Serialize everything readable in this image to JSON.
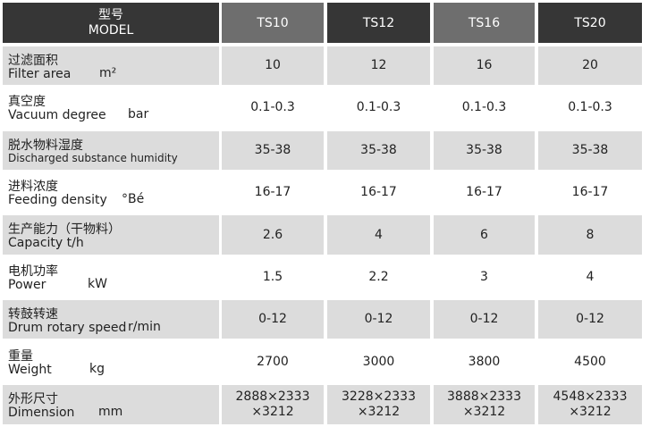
{
  "header": {
    "model_cn": "型号",
    "model_en": "MODEL",
    "columns": [
      "TS10",
      "TS12",
      "TS16",
      "TS20"
    ]
  },
  "rows": [
    {
      "cn": "过滤面积",
      "en": "Filter area",
      "unit": "m²",
      "values": [
        "10",
        "12",
        "16",
        "20"
      ]
    },
    {
      "cn": "真空度",
      "en": "Vacuum degree",
      "unit": "bar",
      "values": [
        "0.1-0.3",
        "0.1-0.3",
        "0.1-0.3",
        "0.1-0.3"
      ]
    },
    {
      "cn": "脱水物料湿度",
      "en": "Discharged substance humidity",
      "values": [
        "35-38",
        "35-38",
        "35-38",
        "35-38"
      ]
    },
    {
      "cn": "进料浓度",
      "en": "Feeding density",
      "unit": "°Bé",
      "values": [
        "16-17",
        "16-17",
        "16-17",
        "16-17"
      ]
    },
    {
      "cn": "生产能力（干物料）",
      "en": "Capacity t/h",
      "values": [
        "2.6",
        "4",
        "6",
        "8"
      ]
    },
    {
      "cn": "电机功率",
      "en": "Power",
      "unit": "kW",
      "values": [
        "1.5",
        "2.2",
        "3",
        "4"
      ]
    },
    {
      "cn": "转鼓转速",
      "en": "Drum rotary speed",
      "unit": "r/min",
      "values": [
        "0-12",
        "0-12",
        "0-12",
        "0-12"
      ]
    },
    {
      "cn": "重量",
      "en": "Weight",
      "unit": "kg",
      "values": [
        "2700",
        "3000",
        "3800",
        "4500"
      ]
    },
    {
      "cn": "外形尺寸",
      "en": "Dimension",
      "unit": "mm",
      "values": [
        "2888×2333\n×3212",
        "3228×2333\n×3212",
        "3888×2333\n×3212",
        "4548×2333\n×3212"
      ]
    }
  ]
}
